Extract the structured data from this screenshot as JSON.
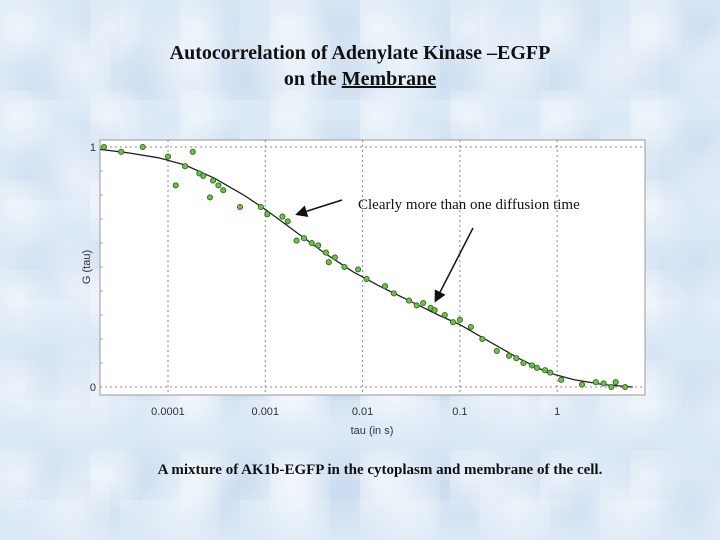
{
  "title_line1": "Autocorrelation of Adenylate Kinase –EGFP",
  "title_line2_prefix": "on the ",
  "title_line2_underlined": "Membrane",
  "caption": "A mixture of AK1b-EGFP in the cytoplasm and membrane of the cell.",
  "chart_data": {
    "type": "scatter",
    "xlabel": "tau (in s)",
    "ylabel": "G (tau)",
    "x_scale": "log",
    "xlim": [
      2e-05,
      8
    ],
    "ylim": [
      0,
      1
    ],
    "x_ticks": [
      {
        "value": 0.0001,
        "label": "0.0001"
      },
      {
        "value": 0.001,
        "label": "0.001"
      },
      {
        "value": 0.01,
        "label": "0.01"
      },
      {
        "value": 0.1,
        "label": "0.1"
      },
      {
        "value": 1,
        "label": "1"
      }
    ],
    "y_ticks": [
      {
        "value": 1,
        "label": "1"
      },
      {
        "value": 0,
        "label": "0"
      }
    ],
    "grid": true,
    "annotation": "Clearly more than one diffusion time",
    "points": [
      [
        2.2e-05,
        1.0
      ],
      [
        3.3e-05,
        0.98
      ],
      [
        5.5e-05,
        1.0
      ],
      [
        0.0001,
        0.96
      ],
      [
        0.00012,
        0.84
      ],
      [
        0.00015,
        0.92
      ],
      [
        0.00018,
        0.98
      ],
      [
        0.00021,
        0.89
      ],
      [
        0.00023,
        0.88
      ],
      [
        0.00027,
        0.79
      ],
      [
        0.00029,
        0.86
      ],
      [
        0.00033,
        0.84
      ],
      [
        0.00037,
        0.82
      ],
      [
        0.00055,
        0.75
      ],
      [
        0.0009,
        0.75
      ],
      [
        0.00105,
        0.72
      ],
      [
        0.0015,
        0.71
      ],
      [
        0.0017,
        0.69
      ],
      [
        0.0021,
        0.61
      ],
      [
        0.0025,
        0.62
      ],
      [
        0.003,
        0.6
      ],
      [
        0.0035,
        0.59
      ],
      [
        0.0042,
        0.56
      ],
      [
        0.0045,
        0.52
      ],
      [
        0.0052,
        0.54
      ],
      [
        0.0065,
        0.5
      ],
      [
        0.009,
        0.49
      ],
      [
        0.011,
        0.45
      ],
      [
        0.017,
        0.42
      ],
      [
        0.021,
        0.39
      ],
      [
        0.03,
        0.36
      ],
      [
        0.036,
        0.34
      ],
      [
        0.042,
        0.35
      ],
      [
        0.05,
        0.33
      ],
      [
        0.055,
        0.32
      ],
      [
        0.07,
        0.3
      ],
      [
        0.085,
        0.27
      ],
      [
        0.1,
        0.28
      ],
      [
        0.13,
        0.25
      ],
      [
        0.17,
        0.2
      ],
      [
        0.24,
        0.15
      ],
      [
        0.32,
        0.13
      ],
      [
        0.38,
        0.12
      ],
      [
        0.45,
        0.1
      ],
      [
        0.55,
        0.09
      ],
      [
        0.62,
        0.08
      ],
      [
        0.75,
        0.07
      ],
      [
        0.85,
        0.06
      ],
      [
        1.1,
        0.03
      ],
      [
        1.8,
        0.01
      ],
      [
        2.5,
        0.02
      ],
      [
        3.0,
        0.015
      ],
      [
        3.6,
        0.0
      ],
      [
        4.0,
        0.02
      ],
      [
        5.0,
        0.0
      ]
    ],
    "fit_curve": [
      [
        2e-05,
        0.99
      ],
      [
        4e-05,
        0.975
      ],
      [
        8e-05,
        0.955
      ],
      [
        0.00015,
        0.925
      ],
      [
        0.0003,
        0.87
      ],
      [
        0.0006,
        0.8
      ],
      [
        0.001,
        0.74
      ],
      [
        0.002,
        0.65
      ],
      [
        0.004,
        0.56
      ],
      [
        0.008,
        0.48
      ],
      [
        0.015,
        0.42
      ],
      [
        0.03,
        0.36
      ],
      [
        0.06,
        0.3
      ],
      [
        0.1,
        0.26
      ],
      [
        0.2,
        0.19
      ],
      [
        0.4,
        0.12
      ],
      [
        0.8,
        0.06
      ],
      [
        1.5,
        0.03
      ],
      [
        3.0,
        0.01
      ],
      [
        6.0,
        0.0
      ]
    ]
  }
}
